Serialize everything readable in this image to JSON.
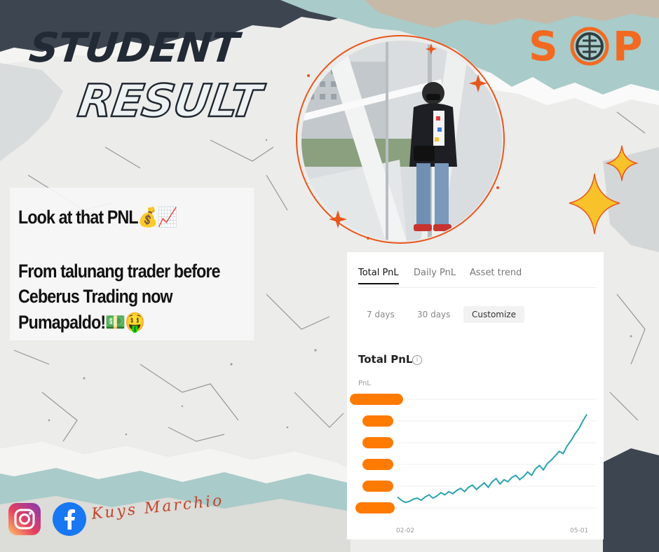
{
  "poster": {
    "title_line1": "STUDENT",
    "title_line2": "RESULT",
    "body_line1": "Look at that PNL💰📈",
    "body_line2": "From talunang trader before",
    "body_line3": "Ceberus Trading now",
    "body_line4": "Pumapaldo!💵🤑",
    "logo_letter_left": "S",
    "logo_letter_right": "P",
    "signature": "Kuys Marchio"
  },
  "colors": {
    "accent_orange": "#f26a21",
    "dark_navy": "#222a35",
    "teal": "#a9cbc9",
    "chart_line": "#2aa3b0",
    "blur_bar": "#ff7a00"
  },
  "icons": [
    "instagram-icon",
    "facebook-icon",
    "sparkle-icon",
    "info-icon"
  ],
  "pnl_card": {
    "tabs": [
      "Total PnL",
      "Daily PnL",
      "Asset trend"
    ],
    "active_tab": "Total PnL",
    "ranges": [
      "7 days",
      "30 days",
      "Customize"
    ],
    "active_range": "Customize",
    "chart_title": "Total PnL",
    "y_axis_label": "PnL",
    "x_start": "02-02",
    "x_end": "05-01"
  },
  "chart_data": {
    "type": "line",
    "title": "Total PnL",
    "ylabel": "PnL",
    "x_start": "02-02",
    "x_end": "05-01",
    "y_tick_labels_hidden": true,
    "grid": true,
    "series": [
      {
        "values": [
          0.1,
          0.07,
          0.05,
          0.06,
          0.08,
          0.09,
          0.07,
          0.1,
          0.12,
          0.09,
          0.11,
          0.14,
          0.12,
          0.15,
          0.13,
          0.16,
          0.18,
          0.15,
          0.19,
          0.21,
          0.17,
          0.2,
          0.23,
          0.19,
          0.24,
          0.27,
          0.22,
          0.26,
          0.24,
          0.28,
          0.3,
          0.26,
          0.29,
          0.33,
          0.3,
          0.36,
          0.39,
          0.35,
          0.41,
          0.44,
          0.48,
          0.52,
          0.5,
          0.57,
          0.62,
          0.68,
          0.73,
          0.8,
          0.86
        ]
      }
    ]
  }
}
